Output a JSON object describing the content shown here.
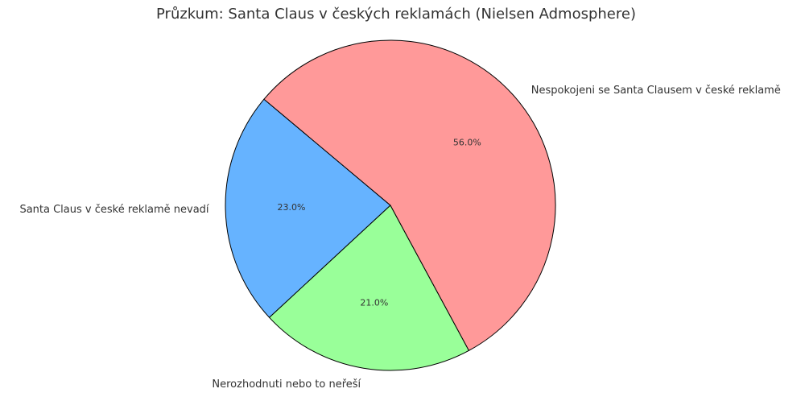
{
  "chart_data": {
    "type": "pie",
    "title": "Průzkum: Santa Claus v českých reklamách (Nielsen Admosphere)",
    "categories": [
      "Santa Claus v české reklamě nevadí",
      "Nerozhodnuti nebo to neřeší",
      "Nespokojeni se Santa Clausem v české reklamě"
    ],
    "values": [
      23,
      21,
      56
    ],
    "value_labels": [
      "23.0%",
      "21.0%",
      "56.0%"
    ],
    "colors": [
      "#66b3ff",
      "#99ff99",
      "#ff9999"
    ],
    "start_angle": 140
  }
}
